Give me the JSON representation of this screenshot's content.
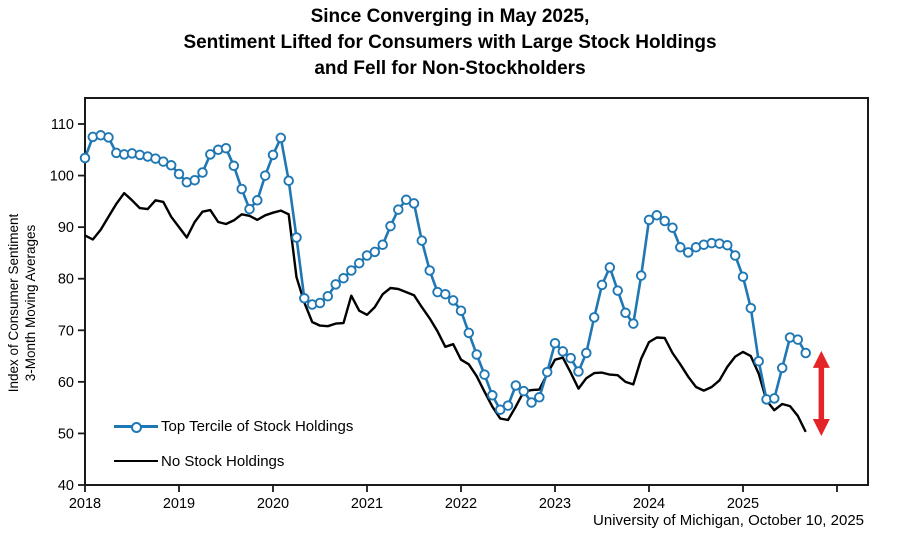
{
  "title": {
    "line1": "Since Converging in May 2025,",
    "line2": "Sentiment Lifted for Consumers with Large Stock Holdings",
    "line3": "and Fell for Non-Stockholders"
  },
  "y_axis_label": {
    "line1": "Index of Consumer Sentiment",
    "line2": "3-Month Moving Averages"
  },
  "source_note": "University of Michigan, October 10, 2025",
  "colors": {
    "top_tercile_blue": "#1F77B4",
    "no_stock_black": "#000000",
    "arrow_red": "#E42528",
    "axis": "#1A1A1A"
  },
  "chart_data": {
    "type": "line",
    "title": "Since Converging in May 2025, Sentiment Lifted for Consumers with Large Stock Holdings and Fell for Non-Stockholders",
    "ylabel": "Index of Consumer Sentiment 3-Month Moving Averages",
    "frequency": "monthly",
    "x_start": "2018-01",
    "x_end": "2025-09",
    "x_tick_labels": [
      "2018",
      "2019",
      "2020",
      "2021",
      "2022",
      "2023",
      "2024",
      "2025"
    ],
    "y_ticks": [
      40,
      50,
      60,
      70,
      80,
      90,
      100,
      110
    ],
    "y_range": [
      40,
      115
    ],
    "grid": false,
    "legend_position": "lower-left",
    "series": [
      {
        "name": "Top Tercile of Stock Holdings",
        "color": "#1F77B4",
        "marker": "circle",
        "values": [
          103.4,
          107.5,
          107.8,
          107.4,
          104.4,
          104.1,
          104.3,
          104.0,
          103.7,
          103.3,
          102.7,
          102.0,
          100.3,
          98.7,
          99.1,
          100.6,
          104.1,
          105.0,
          105.3,
          101.9,
          97.4,
          93.5,
          95.2,
          100.0,
          104.0,
          107.3,
          99.0,
          88.0,
          76.2,
          75.0,
          75.3,
          76.6,
          78.9,
          80.1,
          81.6,
          83.0,
          84.5,
          85.2,
          86.6,
          90.2,
          93.4,
          95.3,
          94.6,
          87.4,
          81.6,
          77.4,
          77.0,
          75.8,
          73.8,
          69.5,
          65.3,
          61.4,
          57.4,
          54.6,
          55.4,
          59.3,
          58.2,
          56.0,
          57.0,
          61.9,
          67.5,
          65.9,
          64.6,
          62.0,
          65.6,
          72.5,
          78.8,
          82.2,
          77.7,
          73.4,
          71.3,
          80.6,
          91.4,
          92.3,
          91.2,
          89.9,
          86.1,
          85.1,
          86.1,
          86.6,
          86.9,
          86.8,
          86.5,
          84.5,
          80.4,
          74.3,
          64.0,
          56.6,
          56.8,
          62.7,
          68.6,
          68.2,
          65.6
        ]
      },
      {
        "name": "No Stock Holdings",
        "color": "#000000",
        "marker": "none",
        "values": [
          88.4,
          87.6,
          89.5,
          92.0,
          94.5,
          96.6,
          95.2,
          93.7,
          93.5,
          95.2,
          94.9,
          92.0,
          90.0,
          88.0,
          91.0,
          93.0,
          93.3,
          91.0,
          90.6,
          91.3,
          92.5,
          92.2,
          91.4,
          92.3,
          92.8,
          93.2,
          92.5,
          80.3,
          75.4,
          71.6,
          70.9,
          70.8,
          71.3,
          71.4,
          76.7,
          73.8,
          73.0,
          74.5,
          77.0,
          78.2,
          78.0,
          77.4,
          76.8,
          74.5,
          72.3,
          69.8,
          66.8,
          67.3,
          64.3,
          63.4,
          61.1,
          58.1,
          55.2,
          52.9,
          52.6,
          55.2,
          58.1,
          58.4,
          58.5,
          61.5,
          64.3,
          64.7,
          61.8,
          58.7,
          60.7,
          61.7,
          61.8,
          61.4,
          61.3,
          60.0,
          59.5,
          64.5,
          67.7,
          68.6,
          68.5,
          65.6,
          63.4,
          61.0,
          59.0,
          58.3,
          59.0,
          60.3,
          62.9,
          64.9,
          65.8,
          65.0,
          61.6,
          56.4,
          54.5,
          55.7,
          55.3,
          53.4,
          50.3
        ]
      }
    ],
    "annotation": {
      "type": "vertical-double-arrow",
      "color": "#E42528",
      "x_position": "2025-11",
      "y_top": 66,
      "y_bottom": 49.5
    }
  }
}
